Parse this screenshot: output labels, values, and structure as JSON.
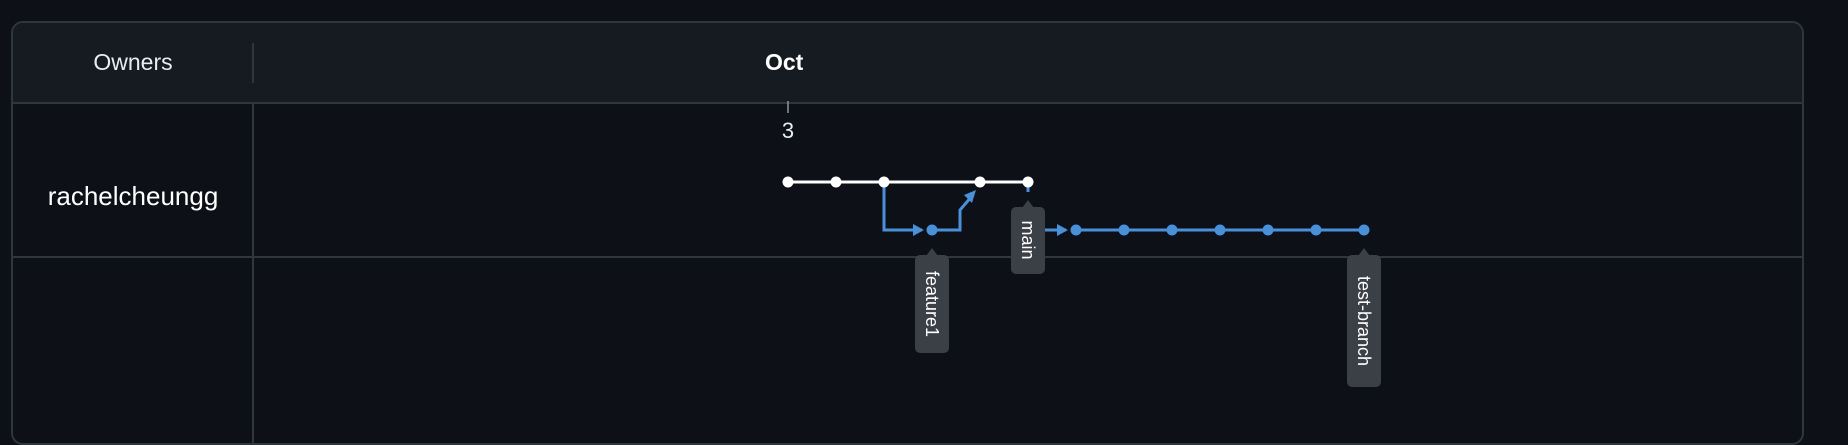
{
  "header": {
    "owners_label": "Owners",
    "month_label": "Oct"
  },
  "timeline": {
    "day_label": "3"
  },
  "rows": [
    {
      "owner": "rachelcheungg"
    },
    {
      "owner": ""
    }
  ],
  "branches": {
    "main": "main",
    "feature1": "feature1",
    "test_branch": "test-branch"
  },
  "colors": {
    "background": "#0d1117",
    "header_background": "#161b22",
    "border": "#30363d",
    "main_line": "#ffffff",
    "branch_line": "#4a90d9",
    "label_background": "#3b3f46"
  }
}
